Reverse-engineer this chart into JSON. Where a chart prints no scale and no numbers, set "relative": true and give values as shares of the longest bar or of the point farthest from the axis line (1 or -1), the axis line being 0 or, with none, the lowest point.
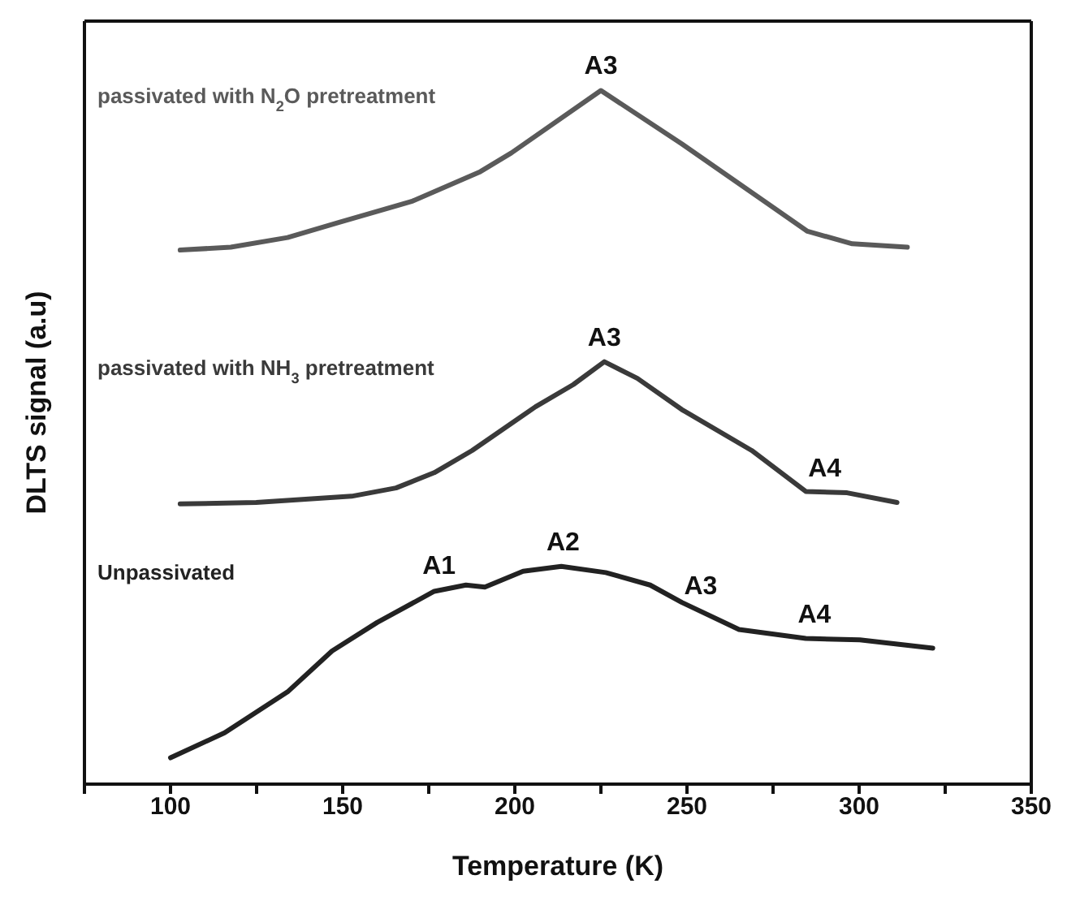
{
  "chart_data": {
    "type": "line",
    "relative": true,
    "xlabel": "Temperature (K)",
    "ylabel": "DLTS signal (a.u)",
    "xlim": [
      75,
      350
    ],
    "xticks": [
      {
        "value": 75,
        "label": null
      },
      100,
      {
        "value": 125,
        "label": null
      },
      150,
      {
        "value": 175,
        "label": null
      },
      200,
      {
        "value": 225,
        "label": null
      },
      250,
      {
        "value": 275,
        "label": null
      },
      300,
      {
        "value": 325,
        "label": null
      },
      350
    ],
    "tick_labels": "x",
    "marker": "none",
    "line_style": "solid",
    "series": [
      {
        "name": "passivated with N$_{2}$O pretreatment",
        "color": "#5a5a5a",
        "x": [
          102.8,
          117.5,
          134,
          149,
          170,
          190,
          199,
          225,
          248.5,
          285,
          298,
          314
        ],
        "values": [
          0.77,
          0.774,
          0.788,
          0.81,
          0.84,
          0.883,
          0.91,
          1.0,
          0.923,
          0.797,
          0.779,
          0.774
        ]
      },
      {
        "name": "passivated with NH$_{3}$ pretreatment",
        "color": "#3a3a3a",
        "x": [
          102.8,
          124.9,
          152.6,
          165.5,
          176.6,
          187.6,
          206,
          217,
          226,
          235.6,
          248.5,
          268.8,
          284.5,
          296.5,
          311
        ],
        "values": [
          0.404,
          0.406,
          0.415,
          0.427,
          0.449,
          0.481,
          0.544,
          0.576,
          0.609,
          0.585,
          0.54,
          0.481,
          0.422,
          0.42,
          0.406
        ]
      },
      {
        "name": "Unpassivated",
        "color": "#222222",
        "x": [
          100,
          115.7,
          134,
          146.9,
          160,
          176.6,
          185.8,
          191.3,
          202.4,
          213.5,
          226.4,
          239.3,
          248.5,
          265.1,
          284.5,
          300.2,
          321.4
        ],
        "values": [
          0.038,
          0.074,
          0.133,
          0.192,
          0.233,
          0.278,
          0.287,
          0.284,
          0.307,
          0.314,
          0.305,
          0.287,
          0.262,
          0.223,
          0.21,
          0.208,
          0.196
        ]
      }
    ],
    "annotations": [
      {
        "text": "A3",
        "x": 225,
        "y": 1.0
      },
      {
        "text": "A3",
        "x": 226,
        "y": 0.609
      },
      {
        "text": "A4",
        "x": 290,
        "y": 0.42
      },
      {
        "text": "A1",
        "x": 178,
        "y": 0.28
      },
      {
        "text": "A2",
        "x": 214,
        "y": 0.314
      },
      {
        "text": "A3",
        "x": 254,
        "y": 0.25
      },
      {
        "text": "A4",
        "x": 287,
        "y": 0.21
      }
    ]
  }
}
